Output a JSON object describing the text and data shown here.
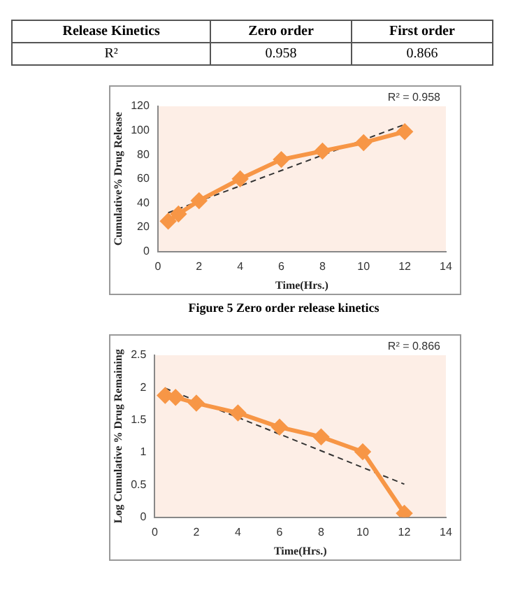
{
  "chart_data": [
    {
      "type": "other",
      "categories": [
        "Release Kinetics",
        "Zero order",
        "First order"
      ],
      "annotations": [
        "R²",
        "0.958",
        "0.866"
      ]
    },
    {
      "type": "line",
      "xlabel": "Time(Hrs.)",
      "ylabel": "Cumulative% Drug Release",
      "annotations": [
        "R² = 0.958"
      ],
      "xlim": [
        0,
        14
      ],
      "xticks": [
        0,
        2,
        4,
        6,
        8,
        10,
        12,
        14
      ],
      "ylim": [
        0,
        120
      ],
      "yticks": [
        0,
        20,
        40,
        60,
        80,
        100,
        120
      ],
      "grid": false,
      "legend": false,
      "marker": "diamond",
      "subtitle": "Figure 5 Zero order release kinetics",
      "series": [
        {
          "color": "#f79646",
          "x": [
            0.5,
            1,
            2,
            4,
            6,
            8,
            10,
            12
          ],
          "values": [
            25,
            31,
            42,
            60,
            76,
            83,
            90,
            99
          ]
        },
        {
          "type": "line",
          "color": "#333333",
          "line_style": "dashed",
          "marker": "none",
          "x": [
            0.5,
            12
          ],
          "values": [
            32,
            105
          ]
        }
      ]
    },
    {
      "type": "line",
      "xlabel": "Time(Hrs.)",
      "ylabel": "Log Cumulative % Drug Remaining",
      "annotations": [
        "R² = 0.866"
      ],
      "xlim": [
        0,
        14
      ],
      "xticks": [
        0,
        2,
        4,
        6,
        8,
        10,
        12,
        14
      ],
      "ylim": [
        0,
        2.5
      ],
      "yticks": [
        0,
        0.5,
        1,
        1.5,
        2,
        2.5
      ],
      "grid": false,
      "legend": false,
      "marker": "diamond",
      "series": [
        {
          "color": "#f79646",
          "x": [
            0.5,
            1,
            2,
            4,
            6,
            8,
            10,
            12
          ],
          "values": [
            1.88,
            1.85,
            1.76,
            1.61,
            1.39,
            1.24,
            1.01,
            0.06
          ]
        },
        {
          "type": "line",
          "color": "#333333",
          "line_style": "dashed",
          "marker": "none",
          "x": [
            0.5,
            12
          ],
          "values": [
            1.99,
            0.51
          ]
        }
      ]
    }
  ]
}
